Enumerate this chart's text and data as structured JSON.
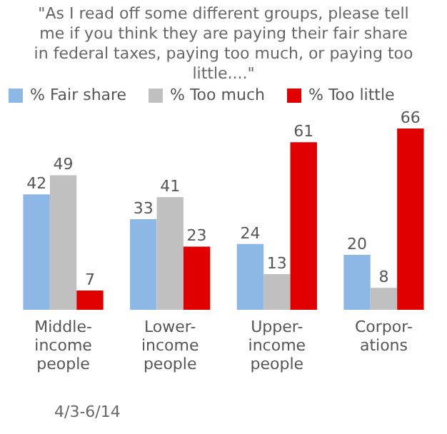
{
  "chart_data": {
    "type": "bar",
    "subtitle": "\"As I read off some different groups, please tell me if you think they are paying their fair share in federal taxes, paying too much, or paying too little....\"",
    "categories": [
      "Middle-income people",
      "Lower-income people",
      "Upper-income people",
      "Corpor-ations"
    ],
    "series": [
      {
        "name": "% Fair share",
        "color": "#8db8e6",
        "values": [
          42,
          33,
          24,
          20
        ]
      },
      {
        "name": "% Too much",
        "color": "#c0c0c0",
        "values": [
          49,
          41,
          13,
          8
        ]
      },
      {
        "name": "% Too little",
        "color": "#e00000",
        "values": [
          7,
          23,
          61,
          66
        ]
      }
    ],
    "data_labels": true,
    "legend": "top",
    "grid": false,
    "annotations": [
      "4/3-6/14"
    ]
  }
}
